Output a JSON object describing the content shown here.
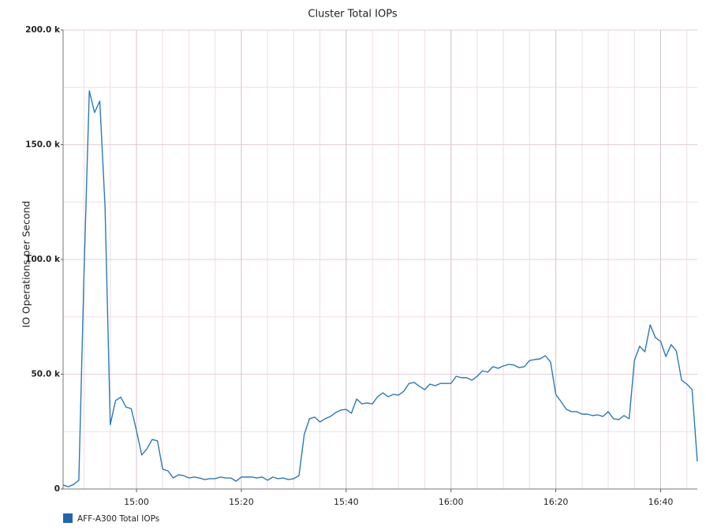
{
  "chart_data": {
    "type": "line",
    "title": "Cluster Total IOPs",
    "y_label": "IO Operations per Second",
    "x": [
      "14:46",
      "14:47",
      "14:48",
      "14:49",
      "14:50",
      "14:51",
      "14:52",
      "14:53",
      "14:54",
      "14:55",
      "14:56",
      "14:57",
      "14:58",
      "14:59",
      "15:00",
      "15:01",
      "15:02",
      "15:03",
      "15:04",
      "15:05",
      "15:06",
      "15:07",
      "15:08",
      "15:09",
      "15:10",
      "15:11",
      "15:12",
      "15:13",
      "15:14",
      "15:15",
      "15:16",
      "15:17",
      "15:18",
      "15:19",
      "15:20",
      "15:21",
      "15:22",
      "15:23",
      "15:24",
      "15:25",
      "15:26",
      "15:27",
      "15:28",
      "15:29",
      "15:30",
      "15:31",
      "15:32",
      "15:33",
      "15:34",
      "15:35",
      "15:36",
      "15:37",
      "15:38",
      "15:39",
      "15:40",
      "15:41",
      "15:42",
      "15:43",
      "15:44",
      "15:45",
      "15:46",
      "15:47",
      "15:48",
      "15:49",
      "15:50",
      "15:51",
      "15:52",
      "15:53",
      "15:54",
      "15:55",
      "15:56",
      "15:57",
      "15:58",
      "15:59",
      "16:00",
      "16:01",
      "16:02",
      "16:03",
      "16:04",
      "16:05",
      "16:06",
      "16:07",
      "16:08",
      "16:09",
      "16:10",
      "16:11",
      "16:12",
      "16:13",
      "16:14",
      "16:15",
      "16:16",
      "16:17",
      "16:18",
      "16:19",
      "16:20",
      "16:21",
      "16:22",
      "16:23",
      "16:24",
      "16:25",
      "16:26",
      "16:27",
      "16:28",
      "16:29",
      "16:30",
      "16:31",
      "16:32",
      "16:33",
      "16:34",
      "16:35",
      "16:36",
      "16:37",
      "16:38",
      "16:39",
      "16:40",
      "16:41",
      "16:42",
      "16:43",
      "16:44",
      "16:45",
      "16:46",
      "16:47"
    ],
    "series": [
      {
        "name": "AFF-A300 Total IOPs",
        "color": "#2a7ab8",
        "legend_color": "#1f66b0",
        "values": [
          1700,
          1000,
          2000,
          3800,
          95000,
          173500,
          164000,
          169000,
          123000,
          28000,
          38500,
          40000,
          35700,
          35000,
          25400,
          14800,
          17500,
          21600,
          21000,
          8600,
          7900,
          4800,
          6200,
          5800,
          4800,
          5200,
          4800,
          4100,
          4500,
          4500,
          5200,
          4800,
          4800,
          3400,
          5200,
          5200,
          5200,
          4800,
          5200,
          3800,
          5200,
          4500,
          4800,
          4100,
          4500,
          5800,
          23700,
          30600,
          31300,
          29200,
          30600,
          31600,
          33300,
          34400,
          34700,
          33000,
          39200,
          37100,
          37500,
          37100,
          40200,
          41900,
          40200,
          41200,
          40900,
          42600,
          46000,
          46400,
          44700,
          43300,
          45700,
          45000,
          46000,
          46000,
          46000,
          49100,
          48500,
          48500,
          47400,
          49100,
          51500,
          50900,
          53300,
          52600,
          53600,
          54300,
          54000,
          52900,
          53300,
          56000,
          56400,
          56700,
          58100,
          55300,
          41200,
          38100,
          34700,
          33700,
          33700,
          32600,
          32600,
          32000,
          32300,
          31600,
          33700,
          30600,
          30200,
          32000,
          30600,
          56000,
          62200,
          59800,
          71500,
          66000,
          64300,
          57700,
          62900,
          60100,
          47400,
          45700,
          43300,
          12000
        ]
      }
    ],
    "xlim": [
      "14:46",
      "16:47"
    ],
    "xticks": [
      "15:00",
      "15:20",
      "15:40",
      "16:00",
      "16:20",
      "16:40"
    ],
    "ylim": [
      0,
      200000
    ],
    "yticks": [
      0,
      {
        "value": 50000,
        "label": "50.0 k"
      },
      {
        "value": 100000,
        "label": "100.0 k"
      },
      {
        "value": 150000,
        "label": "150.0 k"
      },
      {
        "value": 200000,
        "label": "200.0 k"
      }
    ],
    "grid": true,
    "xminor_step": 5,
    "yminor_step": 25000,
    "legend": "bottom-left"
  }
}
